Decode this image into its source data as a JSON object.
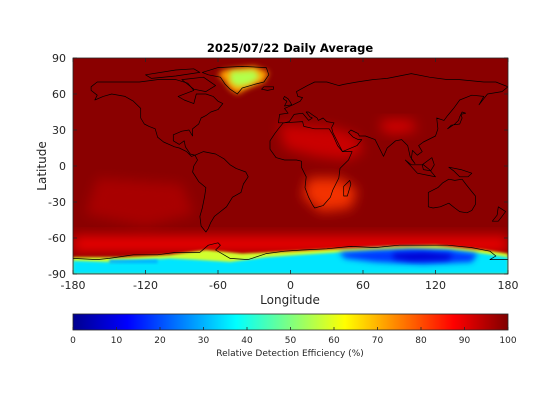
{
  "chart_data": {
    "type": "heatmap",
    "title": "2025/07/22 Daily Average",
    "xlabel": "Longitude",
    "ylabel": "Latitude",
    "xlim": [
      -180,
      180
    ],
    "ylim": [
      -90,
      90
    ],
    "x_ticks": [
      "-180",
      "-120",
      "-60",
      "0",
      "60",
      "120",
      "180"
    ],
    "y_ticks": [
      "90",
      "60",
      "30",
      "0",
      "-30",
      "-60",
      "-90"
    ],
    "colormap": "jet",
    "colorbar": {
      "label": "Relative Detection Efficiency (%)",
      "range": [
        0,
        100
      ],
      "ticks": [
        "0",
        "10",
        "20",
        "30",
        "40",
        "50",
        "60",
        "70",
        "80",
        "90",
        "100"
      ],
      "orientation": "horizontal",
      "placement": "bottom"
    },
    "background_value_percent": 99,
    "regions": [
      {
        "feature": "Greenland ice sheet",
        "value_percent": 55
      },
      {
        "feature": "East Antarctica",
        "value_percent": 18
      },
      {
        "feature": "West Antarctica",
        "value_percent": 35
      },
      {
        "feature": "Southern Ocean band",
        "value_percent": 88
      },
      {
        "feature": "Southern Africa / Madagascar",
        "value_percent": 82
      },
      {
        "feature": "Sahara / Arabia",
        "value_percent": 92
      },
      {
        "feature": "Tibetan Plateau",
        "value_percent": 90
      },
      {
        "feature": "Southeast Pacific",
        "value_percent": 94
      }
    ],
    "grid": false,
    "overlay": "coastlines"
  }
}
